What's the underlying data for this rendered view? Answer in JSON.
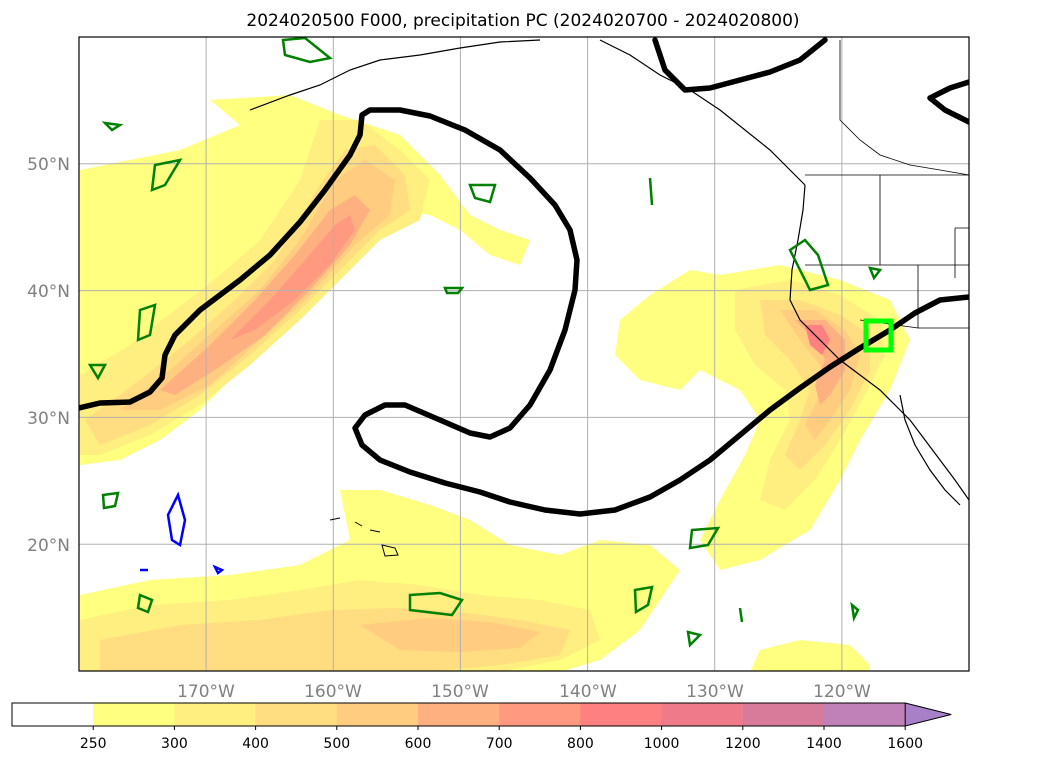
{
  "figure": {
    "title": "2024020500 F000, precipitation PC (2024020700 - 2024020800)"
  },
  "map": {
    "projection": "PlateCarree",
    "lon_range": [
      -180,
      -110
    ],
    "lat_range": [
      10,
      60
    ],
    "gridlines": true,
    "lat_labels": [
      "20°N",
      "30°N",
      "40°N",
      "50°N"
    ],
    "lon_labels": [
      "170°W",
      "160°W",
      "150°W",
      "140°W",
      "130°W",
      "120°W"
    ],
    "highlight_box": {
      "lon": [
        -117.5,
        -115.5
      ],
      "lat": [
        35,
        37.5
      ],
      "color": "#00ff00"
    },
    "colors": {
      "jet_contour": "#000000",
      "positive_anomaly_contour": "#008000",
      "negative_anomaly_contour": "#0000ff",
      "coastline": "#000000"
    }
  },
  "colorbar": {
    "levels": [
      "250",
      "300",
      "400",
      "500",
      "600",
      "700",
      "800",
      "1000",
      "1200",
      "1400",
      "1600"
    ],
    "colors": [
      "#ffffff",
      "#ffff80",
      "#ffee80",
      "#ffdd80",
      "#ffcc80",
      "#ffb080",
      "#ff9a80",
      "#ff8080",
      "#ee7a8a",
      "#d87a9a",
      "#c080b8",
      "#a880c8"
    ],
    "extend": "max"
  }
}
